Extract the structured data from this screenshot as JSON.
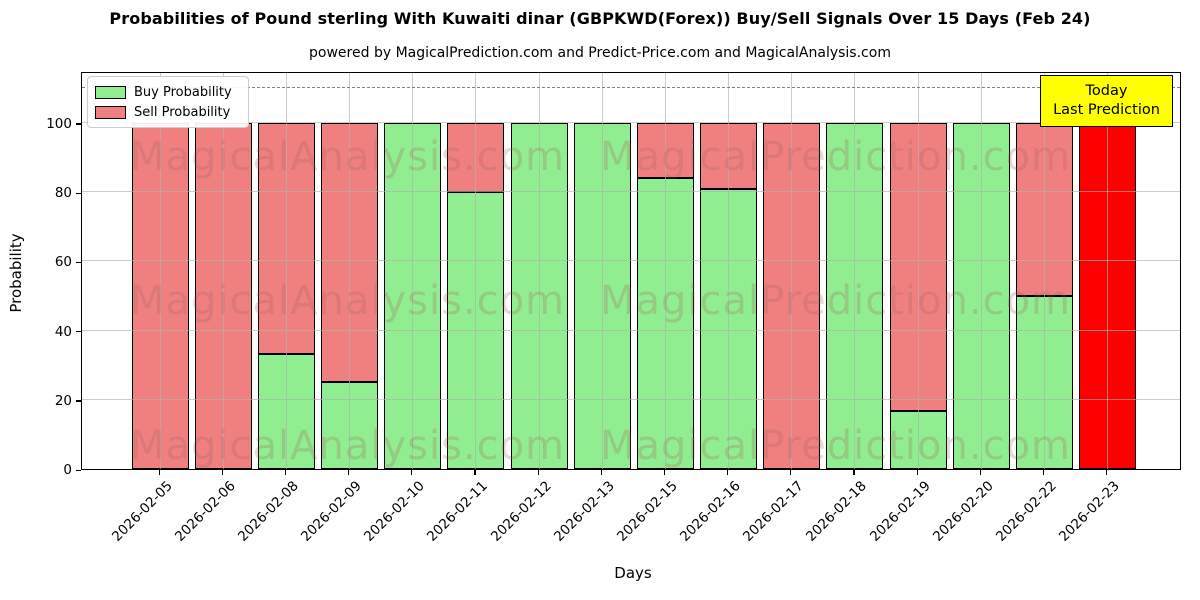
{
  "title": "Probabilities of Pound sterling With Kuwaiti dinar (GBPKWD(Forex)) Buy/Sell Signals Over 15 Days (Feb 24)",
  "subtitle": "powered by MagicalPrediction.com and Predict-Price.com and MagicalAnalysis.com",
  "axes": {
    "x_label": "Days",
    "y_label": "Probability",
    "y_ticks": [
      0,
      20,
      40,
      60,
      80,
      100
    ]
  },
  "legend": {
    "items": [
      {
        "label": "Buy Probability",
        "color": "#90EE90"
      },
      {
        "label": "Sell Probability",
        "color": "#F08080"
      }
    ]
  },
  "annotation": {
    "line1": "Today",
    "line2": "Last Prediction",
    "bg_color": "#FFFF00"
  },
  "watermarks": {
    "left_text": "MagicalAnalysis.com",
    "right_text": "MagicalPrediction.com"
  },
  "colors": {
    "buy": "#90EE90",
    "sell": "#F08080",
    "today_bar": "#FF0000",
    "grid": "#b0b0b0",
    "dashed_line": "#7f7f7f"
  },
  "chart_data": {
    "type": "bar",
    "stacked": true,
    "title": "Probabilities of Pound sterling With Kuwaiti dinar (GBPKWD(Forex)) Buy/Sell Signals Over 15 Days (Feb 24)",
    "xlabel": "Days",
    "ylabel": "Probability",
    "ylim": [
      0,
      115
    ],
    "dashed_guide_y": 110,
    "grid": true,
    "legend_position": "upper left",
    "categories": [
      "2026-02-05",
      "2026-02-06",
      "2026-02-08",
      "2026-02-09",
      "2026-02-10",
      "2026-02-11",
      "2026-02-12",
      "2026-02-13",
      "2026-02-15",
      "2026-02-16",
      "2026-02-17",
      "2026-02-18",
      "2026-02-19",
      "2026-02-20",
      "2026-02-22",
      "2026-02-23"
    ],
    "series": [
      {
        "name": "Buy Probability",
        "color": "#90EE90",
        "values": [
          0,
          0,
          33.33,
          25,
          100,
          80,
          100,
          100,
          84,
          81,
          0,
          100,
          16.67,
          100,
          50,
          0
        ]
      },
      {
        "name": "Sell Probability",
        "color": "#F08080",
        "values": [
          100,
          100,
          66.67,
          75,
          0,
          20,
          0,
          0,
          16,
          19,
          100,
          0,
          83.33,
          0,
          50,
          100
        ]
      }
    ],
    "highlight_bar": {
      "category": "2026-02-23",
      "index": 15,
      "color": "#FF0000",
      "meaning": "Today / Last Prediction"
    }
  }
}
